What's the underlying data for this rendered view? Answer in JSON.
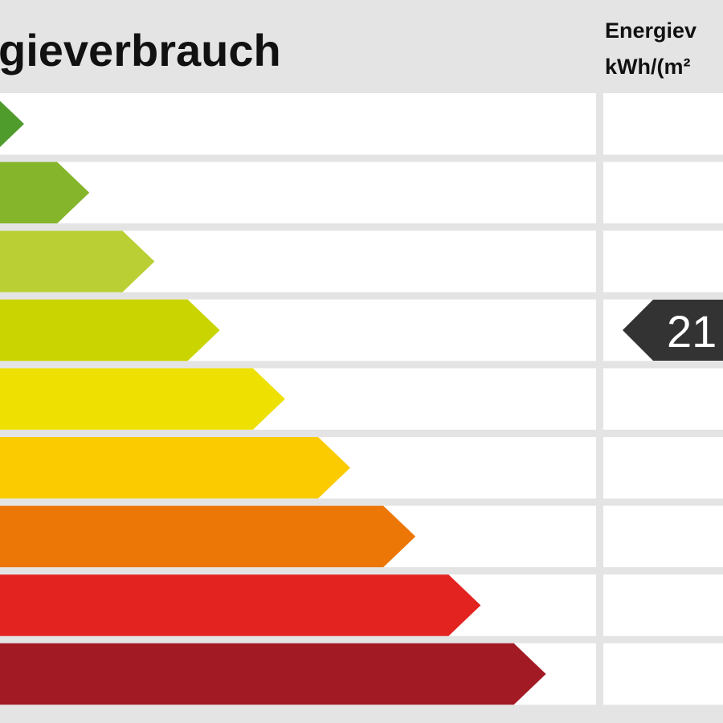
{
  "header": {
    "title": "gieverbrauch",
    "unit_lines": [
      "Energiev",
      "kWh/(m²"
    ]
  },
  "indicator": {
    "value": "21"
  }
}
